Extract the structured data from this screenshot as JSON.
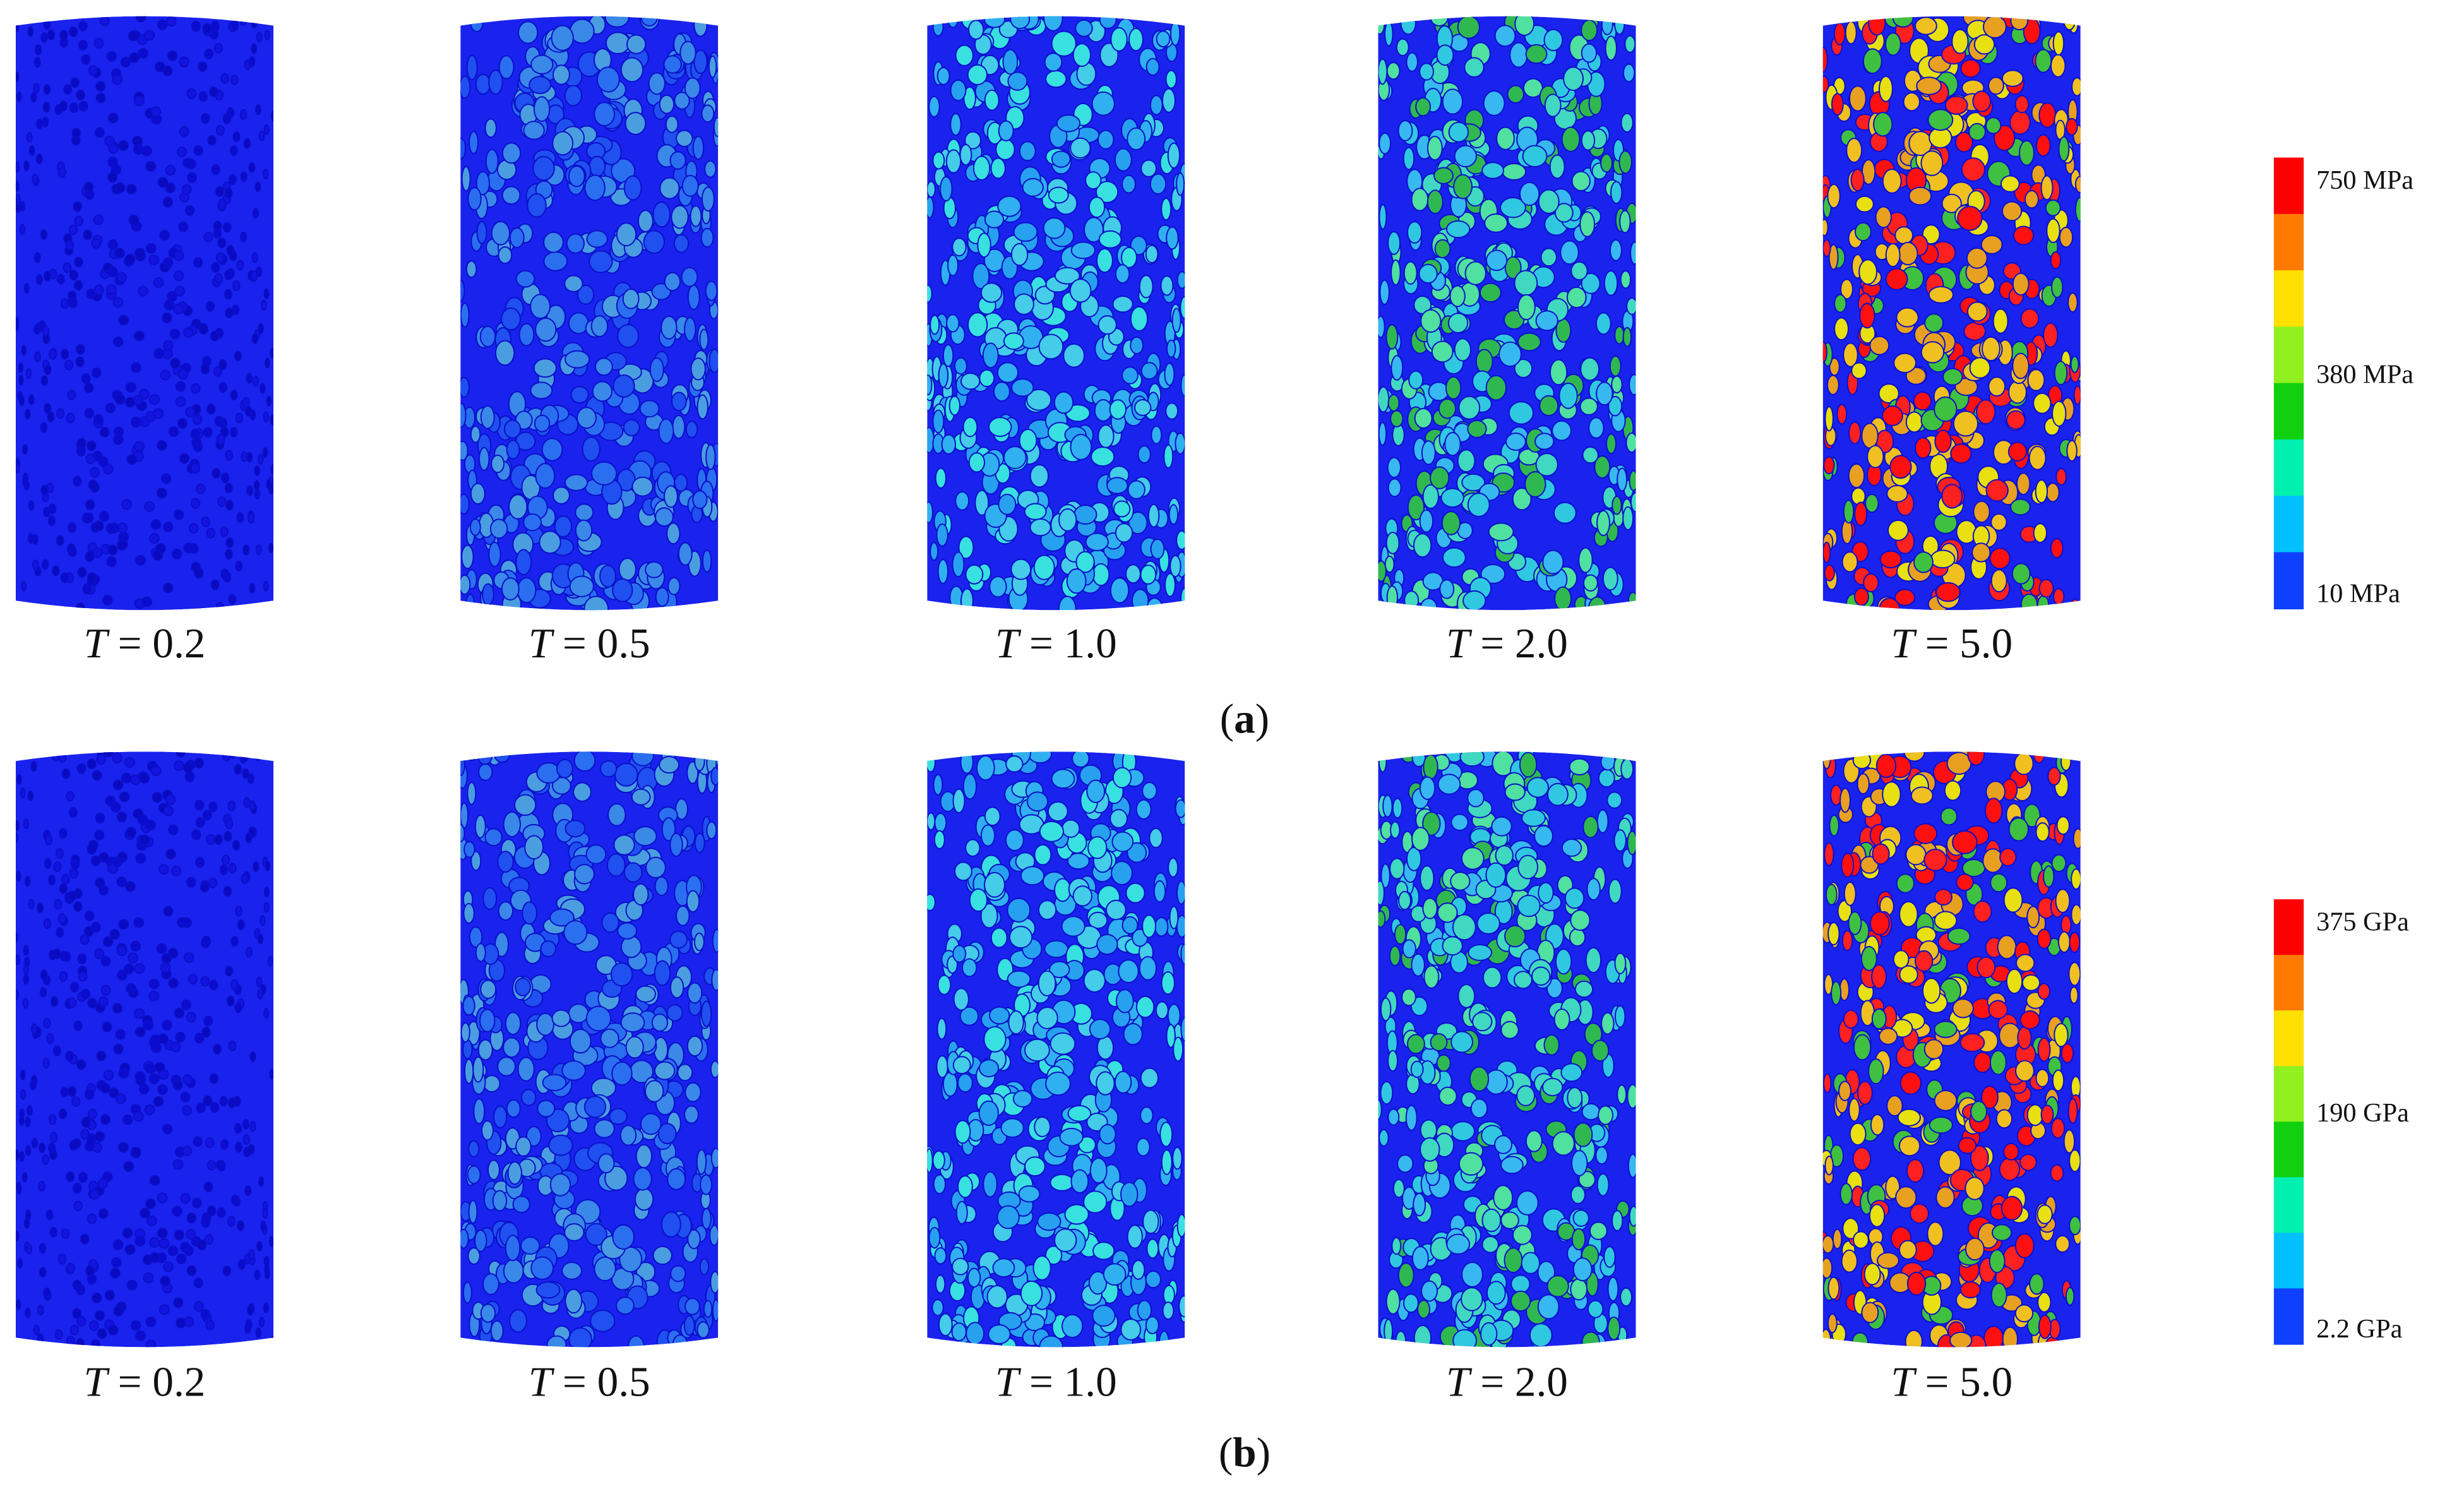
{
  "panels": [
    {
      "label_parts": [
        "(",
        "a",
        ")"
      ],
      "cases": [
        {
          "symbol": "T",
          "text": "= 0.2"
        },
        {
          "symbol": "T",
          "text": "= 0.5"
        },
        {
          "symbol": "T",
          "text": "= 1.0"
        },
        {
          "symbol": "T",
          "text": "= 2.0"
        },
        {
          "symbol": "T",
          "text": "= 5.0"
        }
      ],
      "colorbar": {
        "top": "750 MPa",
        "middle": "380 MPa",
        "bottom": "10 MPa"
      }
    },
    {
      "label_parts": [
        "(",
        "b",
        ")"
      ],
      "cases": [
        {
          "symbol": "T",
          "text": "= 0.2"
        },
        {
          "symbol": "T",
          "text": "= 0.5"
        },
        {
          "symbol": "T",
          "text": "= 1.0"
        },
        {
          "symbol": "T",
          "text": "= 2.0"
        },
        {
          "symbol": "T",
          "text": "= 5.0"
        }
      ],
      "colorbar": {
        "top": "375 GPa",
        "middle": "190 GPa",
        "bottom": "2.2 GPa"
      }
    }
  ]
}
